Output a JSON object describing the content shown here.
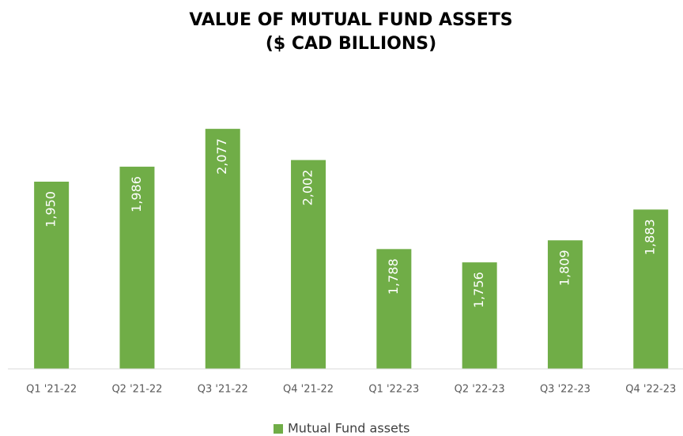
{
  "chart_data": {
    "type": "bar",
    "title": [
      "VALUE OF MUTUAL FUND ASSETS",
      "($ CAD BILLIONS)"
    ],
    "categories": [
      "Q1 '21-22",
      "Q2 '21-22",
      "Q3 '21-22",
      "Q4 '21-22",
      "Q1 '22-23",
      "Q2 '22-23",
      "Q3 '22-23",
      "Q4 '22-23"
    ],
    "series": [
      {
        "name": "Mutual Fund assets",
        "color": "#70ad47",
        "values": [
          1950,
          1986,
          2077,
          2002,
          1788,
          1756,
          1809,
          1883
        ],
        "value_labels": [
          "1,950",
          "1,986",
          "2,077",
          "2,002",
          "1,788",
          "1,756",
          "1,809",
          "1,883"
        ]
      }
    ],
    "ylim": [
      1500,
      2100
    ],
    "legend": "bottom"
  }
}
